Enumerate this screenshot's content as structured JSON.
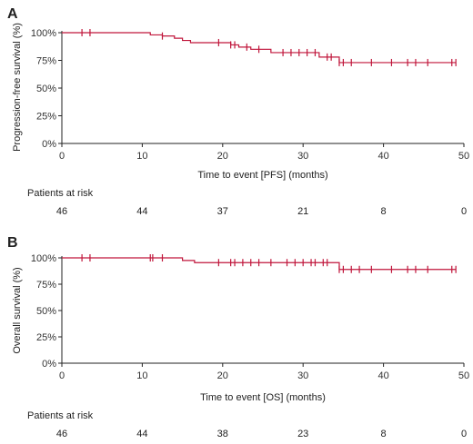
{
  "chart_data": [
    {
      "panel": "A",
      "type": "line",
      "ylabel": "Progression-free survival (%)",
      "xlabel": "Time to event [PFS] (months)",
      "xlim": [
        0,
        50
      ],
      "ylim": [
        0,
        100
      ],
      "x_ticks": [
        "0",
        "10",
        "20",
        "30",
        "40",
        "50"
      ],
      "y_ticks": [
        "0%",
        "25%",
        "50%",
        "75%",
        "100%"
      ],
      "grid": false,
      "step_curve": {
        "x": [
          0,
          11,
          12.5,
          14,
          15,
          16,
          19,
          21,
          22,
          23.5,
          26,
          32,
          33.5,
          34.5,
          49
        ],
        "y": [
          100,
          98,
          97,
          95,
          93,
          91,
          91,
          89,
          87,
          85,
          82,
          78,
          78,
          73,
          73
        ]
      },
      "censor_times": [
        2.5,
        3.5,
        12.5,
        19.5,
        21,
        21.5,
        23,
        24.5,
        27.5,
        28.5,
        29.5,
        30.5,
        31.5,
        33,
        33.5,
        34.5,
        35,
        36,
        38.5,
        41,
        43,
        44,
        45.5,
        48.5,
        49
      ],
      "risk_table": {
        "label": "Patients at risk",
        "times": [
          0,
          10,
          20,
          30,
          40,
          50
        ],
        "values": [
          "46",
          "44",
          "37",
          "21",
          "8",
          "0"
        ]
      }
    },
    {
      "panel": "B",
      "type": "line",
      "ylabel": "Overall survival (%)",
      "xlabel": "Time to event [OS] (months)",
      "xlim": [
        0,
        50
      ],
      "ylim": [
        0,
        100
      ],
      "x_ticks": [
        "0",
        "10",
        "20",
        "30",
        "40",
        "50"
      ],
      "y_ticks": [
        "0%",
        "25%",
        "50%",
        "75%",
        "100%"
      ],
      "grid": false,
      "step_curve": {
        "x": [
          0,
          15,
          16.5,
          19,
          33.5,
          34.5,
          49
        ],
        "y": [
          100,
          97.5,
          95.5,
          95.5,
          95.5,
          89,
          89
        ]
      },
      "censor_times": [
        2.5,
        3.5,
        11,
        11.3,
        12.5,
        19.5,
        21,
        21.5,
        22.5,
        23.5,
        24.5,
        26,
        28,
        29,
        30,
        31,
        31.5,
        32.5,
        33,
        34.5,
        35,
        36,
        37,
        38.5,
        41,
        43,
        44,
        45.5,
        48.5,
        49
      ],
      "risk_table": {
        "label": "Patients at risk",
        "times": [
          0,
          10,
          20,
          30,
          40,
          50
        ],
        "values": [
          "46",
          "44",
          "38",
          "23",
          "8",
          "0"
        ]
      }
    }
  ],
  "colors": {
    "curve": "#c0163b",
    "axis": "#222222"
  }
}
